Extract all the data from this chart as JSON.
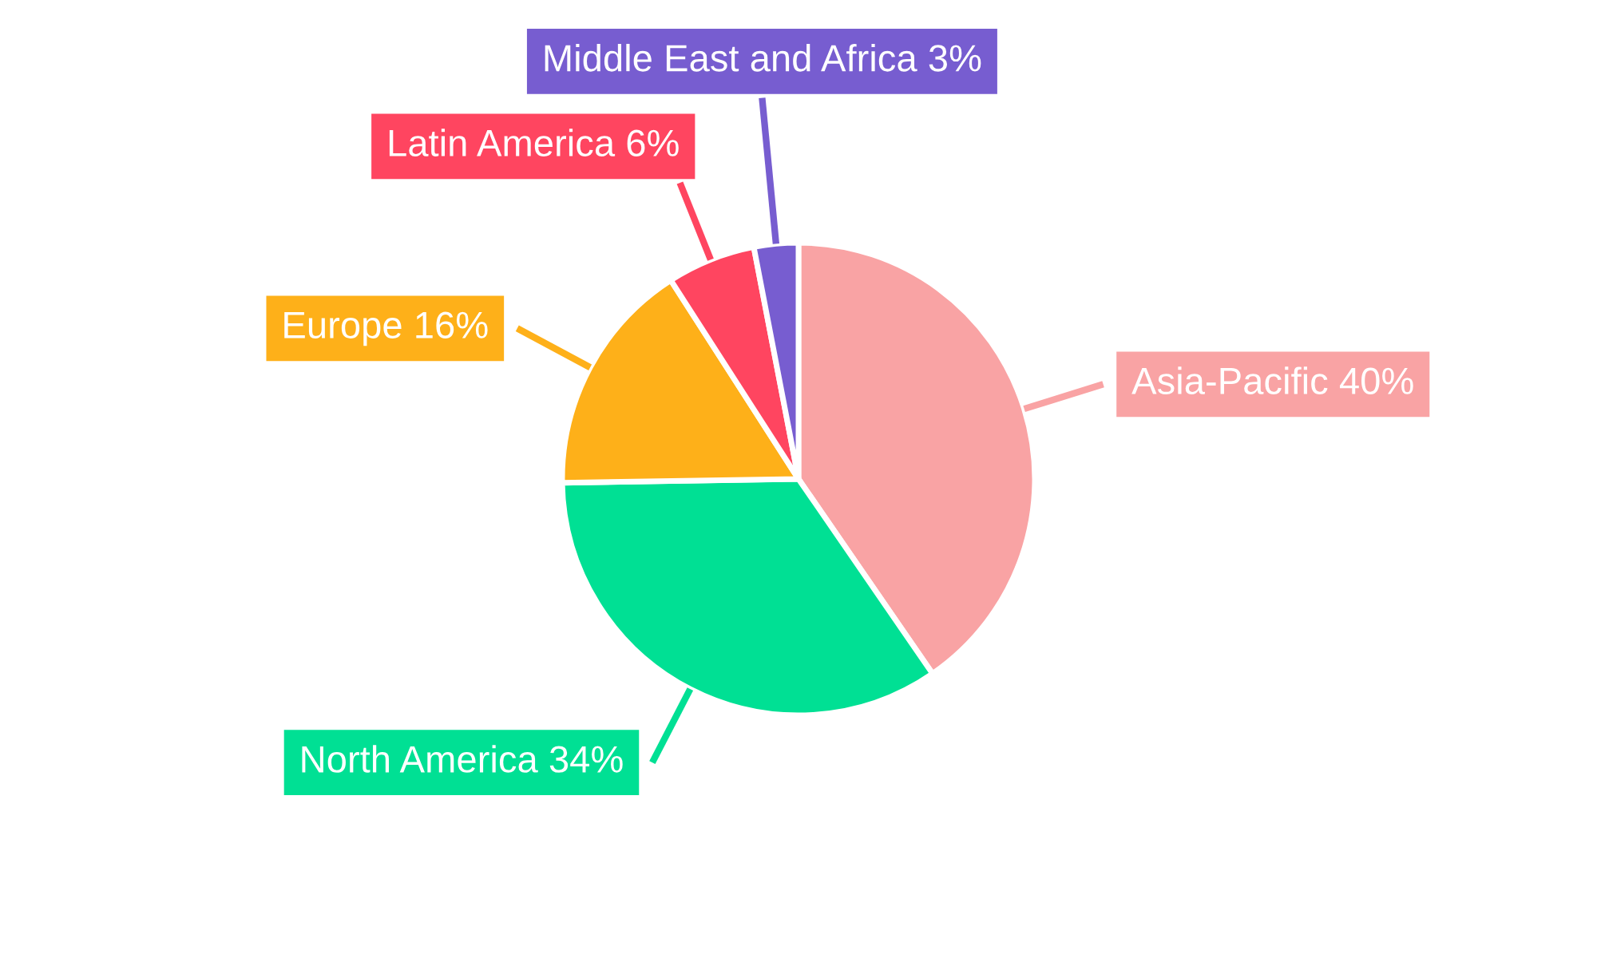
{
  "chart_data": {
    "type": "pie",
    "categories": [
      "Asia-Pacific",
      "North America",
      "Europe",
      "Latin America",
      "Middle East and Africa"
    ],
    "values": [
      40,
      34,
      16,
      6,
      3
    ],
    "value_labels": [
      "40%",
      "34%",
      "16%",
      "6%",
      "3%"
    ],
    "colors": [
      "#f9a3a4",
      "#00e094",
      "#feb019",
      "#ff4560",
      "#775dd0"
    ],
    "legend": false
  }
}
